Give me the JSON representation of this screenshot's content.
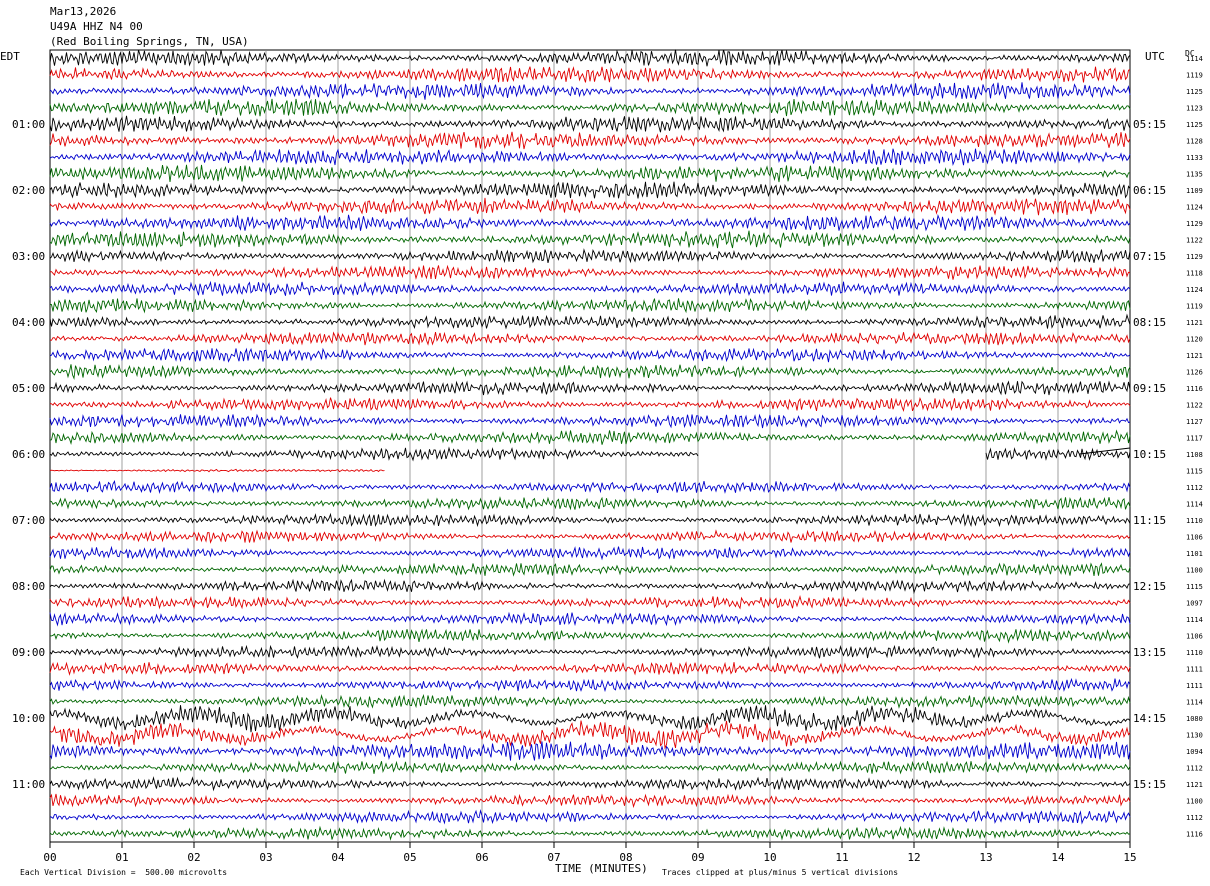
{
  "header": {
    "date": "Mar13,2026",
    "station": "U49A HHZ N4 00",
    "location": "(Red Boiling Springs, TN, USA)"
  },
  "left_tz": "EDT",
  "right_tz": "UTC",
  "dc_label": "DC",
  "footer": {
    "scale_note": "Each Vertical Division =  500.00 microvolts",
    "xlabel": "TIME (MINUTES)",
    "clip_note": "Traces clipped at plus/minus 5 vertical divisions"
  },
  "colors": {
    "black": "#000000",
    "red": "#e00000",
    "blue": "#0000cc",
    "green": "#006600",
    "grid": "#888888"
  },
  "chart_data": {
    "type": "line",
    "title": "U49A HHZ N4 00",
    "xlabel": "TIME (MINUTES)",
    "xlim": [
      0,
      15
    ],
    "x_ticks": [
      "00",
      "01",
      "02",
      "03",
      "04",
      "05",
      "06",
      "07",
      "08",
      "09",
      "10",
      "11",
      "12",
      "13",
      "14",
      "15"
    ],
    "left_hour_labels": [
      "01:00",
      "02:00",
      "03:00",
      "04:00",
      "05:00",
      "06:00",
      "07:00",
      "08:00",
      "09:00",
      "10:00",
      "11:00"
    ],
    "right_hour_labels": [
      "05:15",
      "06:15",
      "07:15",
      "08:15",
      "09:15",
      "10:15",
      "11:15",
      "12:15",
      "13:15",
      "14:15",
      "15:15"
    ],
    "trace_colors": [
      "black",
      "red",
      "blue",
      "green"
    ],
    "dc_offsets": [
      1114,
      1119,
      1125,
      1123,
      1125,
      1128,
      1133,
      1135,
      1109,
      1124,
      1129,
      1122,
      1129,
      1118,
      1124,
      1119,
      1121,
      1120,
      1121,
      1126,
      1116,
      1122,
      1127,
      1117,
      1108,
      1115,
      1112,
      1114,
      1110,
      1106,
      1101,
      1100,
      1115,
      1097,
      1114,
      1106,
      1110,
      1111,
      1111,
      1114,
      1080,
      1130,
      1094,
      1112,
      1121,
      1100,
      1112,
      1116
    ],
    "gaps": [
      {
        "row": 24,
        "from_min": 9.0,
        "to_min": 13.0
      },
      {
        "row": 25,
        "from_min": 4.65,
        "to_min": 15.0
      }
    ]
  }
}
